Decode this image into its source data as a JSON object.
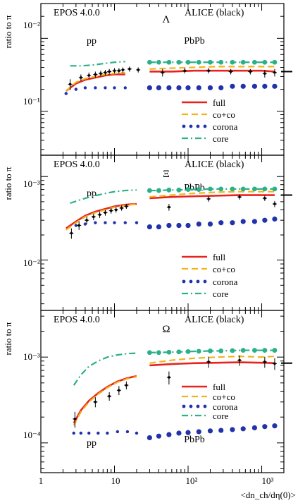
{
  "figure": {
    "xlabel": "<dn_ch/dη(0)>",
    "x_tick_labels": [
      "1",
      "10",
      "10²",
      "10³"
    ],
    "y_label": "ratio to π"
  },
  "colors": {
    "full": "#e8231f",
    "co+co": "#f2b41a",
    "corona": "#2233aa",
    "core": "#2bb08a",
    "data": "#000000"
  },
  "chart_data": [
    {
      "type": "line",
      "panel": "Lambda",
      "model_label": "EPOS 4.0.0",
      "data_label": "ALICE (black)",
      "particle": "Λ",
      "system_labels": [
        "pp",
        "PbPb"
      ],
      "xlabel": "<dn_ch/dη(0)>",
      "ylabel": "ratio to π",
      "xscale": "log",
      "yscale": "log",
      "xlim": [
        1,
        2000
      ],
      "ylim": [
        0.0025,
        0.3
      ],
      "y_tick_labels": [
        "10⁻²",
        "10⁻¹"
      ],
      "legend": {
        "placement": "bottom-right",
        "entries": [
          "full",
          "co+co",
          "corona",
          "core"
        ]
      },
      "series": [
        {
          "name": "full",
          "style": "solid",
          "x": [
            2.2,
            3,
            4,
            5.5,
            7.5,
            10,
            14,
            30,
            60,
            120,
            250,
            500,
            1000,
            1500
          ],
          "y": [
            0.019,
            0.024,
            0.027,
            0.029,
            0.031,
            0.032,
            0.032,
            0.035,
            0.035,
            0.036,
            0.036,
            0.036,
            0.036,
            0.035
          ]
        },
        {
          "name": "co+co",
          "style": "dashed",
          "x": [
            2.2,
            3,
            4,
            5.5,
            7.5,
            10,
            14,
            30,
            60,
            120,
            250,
            500,
            1000,
            1500
          ],
          "y": [
            0.019,
            0.025,
            0.028,
            0.03,
            0.032,
            0.033,
            0.034,
            0.038,
            0.039,
            0.04,
            0.041,
            0.041,
            0.041,
            0.041
          ]
        },
        {
          "name": "corona",
          "style": "dotted",
          "x": [
            2.2,
            3,
            4,
            5.5,
            7.5,
            10,
            14,
            30,
            40,
            55,
            75,
            100,
            140,
            200,
            280,
            400,
            560,
            800,
            1100,
            1500
          ],
          "y": [
            0.0175,
            0.02,
            0.021,
            0.021,
            0.021,
            0.021,
            0.021,
            0.021,
            0.021,
            0.021,
            0.021,
            0.021,
            0.021,
            0.021,
            0.021,
            0.022,
            0.022,
            0.022,
            0.022,
            0.022
          ]
        },
        {
          "name": "core",
          "style": "dashdot",
          "x": [
            2.5,
            3.5,
            5,
            7,
            10,
            14,
            30,
            40,
            55,
            75,
            100,
            140,
            200,
            280,
            400,
            560,
            800,
            1100,
            1500
          ],
          "y": [
            0.042,
            0.042,
            0.043,
            0.045,
            0.047,
            0.048,
            0.047,
            0.047,
            0.047,
            0.047,
            0.047,
            0.047,
            0.047,
            0.047,
            0.047,
            0.047,
            0.047,
            0.047,
            0.047
          ]
        },
        {
          "name": "ALICE",
          "style": "points",
          "x": [
            2.5,
            3.5,
            4.5,
            5.5,
            6.5,
            7.5,
            8.5,
            10,
            11.5,
            13,
            16,
            21,
            45,
            90,
            190,
            380,
            700,
            1100,
            1500
          ],
          "y": [
            0.0235,
            0.029,
            0.031,
            0.032,
            0.033,
            0.034,
            0.035,
            0.036,
            0.036,
            0.037,
            0.038,
            0.037,
            0.034,
            0.036,
            0.036,
            0.035,
            0.035,
            0.033,
            0.034
          ],
          "err": [
            0.004,
            0.003,
            0.003,
            0.003,
            0.003,
            0.003,
            0.003,
            0.003,
            0.003,
            0.003,
            0.003,
            0.003,
            0.004,
            0.003,
            0.003,
            0.003,
            0.003,
            0.004,
            0.004
          ]
        }
      ]
    },
    {
      "type": "line",
      "panel": "Xi",
      "model_label": "EPOS 4.0.0",
      "data_label": "ALICE (black)",
      "particle": "Ξ",
      "system_labels": [
        "pp",
        "PbPb"
      ],
      "xlabel": "<dn_ch/dη(0)>",
      "ylabel": "ratio to π",
      "xscale": "log",
      "yscale": "log",
      "xlim": [
        1,
        2000
      ],
      "ylim": [
        0.00025,
        0.018
      ],
      "y_tick_labels": [
        "10⁻³",
        "10⁻²"
      ],
      "legend": {
        "placement": "bottom-right",
        "entries": [
          "full",
          "co+co",
          "corona",
          "core"
        ]
      },
      "series": [
        {
          "name": "full",
          "style": "solid",
          "x": [
            2.2,
            3,
            4,
            5.5,
            7.5,
            10,
            14,
            20,
            30,
            60,
            120,
            250,
            500,
            1000,
            1500
          ],
          "y": [
            0.0024,
            0.0029,
            0.0034,
            0.0038,
            0.0041,
            0.0044,
            0.0046,
            0.0047,
            0.0055,
            0.0057,
            0.0058,
            0.0059,
            0.006,
            0.006,
            0.006
          ]
        },
        {
          "name": "co+co",
          "style": "dashed",
          "x": [
            2.2,
            3,
            4,
            5.5,
            7.5,
            10,
            14,
            20,
            30,
            60,
            120,
            250,
            500,
            1000,
            1500
          ],
          "y": [
            0.0023,
            0.0028,
            0.0033,
            0.0037,
            0.004,
            0.0043,
            0.0045,
            0.0047,
            0.0057,
            0.006,
            0.0063,
            0.0065,
            0.0066,
            0.0066,
            0.0066
          ]
        },
        {
          "name": "corona",
          "style": "dotted",
          "x": [
            3,
            4,
            5.5,
            7.5,
            10,
            14,
            20,
            30,
            40,
            55,
            75,
            100,
            140,
            200,
            280,
            400,
            560,
            800,
            1100,
            1500
          ],
          "y": [
            0.0026,
            0.0027,
            0.0028,
            0.0028,
            0.0028,
            0.0028,
            0.0028,
            0.0025,
            0.0025,
            0.0026,
            0.0026,
            0.0026,
            0.0027,
            0.0027,
            0.0028,
            0.0028,
            0.0029,
            0.0029,
            0.003,
            0.0031
          ]
        },
        {
          "name": "core",
          "style": "dashdot",
          "x": [
            2.5,
            3.5,
            5,
            7,
            10,
            14,
            20,
            30,
            40,
            55,
            75,
            100,
            140,
            200,
            280,
            400,
            560,
            800,
            1100,
            1500
          ],
          "y": [
            0.0048,
            0.0053,
            0.0058,
            0.0062,
            0.0066,
            0.0068,
            0.0069,
            0.0068,
            0.0068,
            0.0069,
            0.0069,
            0.007,
            0.007,
            0.0071,
            0.0071,
            0.0071,
            0.0071,
            0.0071,
            0.0071,
            0.0071
          ]
        },
        {
          "name": "ALICE",
          "style": "points",
          "x": [
            2.6,
            3.3,
            4.2,
            5.2,
            6.3,
            7.5,
            9,
            10.5,
            12.5,
            14.5,
            55,
            190,
            500,
            1100,
            1500
          ],
          "y": [
            0.0021,
            0.0026,
            0.003,
            0.0033,
            0.0035,
            0.0037,
            0.0039,
            0.004,
            0.0042,
            0.0044,
            0.0043,
            0.0054,
            0.0057,
            0.0055,
            0.0047
          ],
          "err": [
            0.0003,
            0.0003,
            0.0003,
            0.0003,
            0.0003,
            0.0003,
            0.0003,
            0.0003,
            0.0003,
            0.0003,
            0.0004,
            0.0004,
            0.0004,
            0.0004,
            0.0004
          ]
        }
      ]
    },
    {
      "type": "line",
      "panel": "Omega",
      "model_label": "EPOS 4.0.0",
      "data_label": "ALICE (black)",
      "particle": "Ω",
      "system_labels": [
        "pp",
        "PbPb"
      ],
      "xlabel": "<dn_ch/dη(0)>",
      "ylabel": "ratio to π",
      "xscale": "log",
      "yscale": "log",
      "xlim": [
        1,
        2000
      ],
      "ylim": [
        4.5e-05,
        0.0035
      ],
      "y_tick_labels": [
        "10⁻⁴",
        "10⁻³"
      ],
      "legend": {
        "placement": "middle-right",
        "entries": [
          "full",
          "co+co",
          "corona",
          "core"
        ]
      },
      "series": [
        {
          "name": "full",
          "style": "solid",
          "x": [
            2.8,
            3.5,
            4.5,
            6,
            8,
            11,
            15,
            20,
            30,
            60,
            120,
            250,
            500,
            1000,
            1500
          ],
          "y": [
            0.00017,
            0.00024,
            0.00031,
            0.00038,
            0.00045,
            0.00052,
            0.00057,
            0.0006,
            0.0008,
            0.00083,
            0.00085,
            0.00086,
            0.00087,
            0.00086,
            0.00085
          ]
        },
        {
          "name": "co+co",
          "style": "dashed",
          "x": [
            2.8,
            3.5,
            4.5,
            6,
            8,
            11,
            15,
            20,
            30,
            60,
            120,
            250,
            500,
            1000,
            1500
          ],
          "y": [
            0.00016,
            0.00023,
            0.0003,
            0.00037,
            0.00044,
            0.00051,
            0.00056,
            0.00059,
            0.00085,
            0.00092,
            0.00097,
            0.001,
            0.00102,
            0.001,
            0.00102
          ]
        },
        {
          "name": "corona",
          "style": "dotted",
          "x": [
            2.8,
            3.5,
            4.5,
            6,
            8,
            11,
            15,
            20,
            30,
            40,
            55,
            75,
            100,
            140,
            200,
            280,
            400,
            560,
            800,
            1100,
            1500
          ],
          "y": [
            0.00013,
            0.00013,
            0.00013,
            0.00013,
            0.00013,
            0.000135,
            0.000135,
            0.00013,
            0.000115,
            0.00012,
            0.000125,
            0.00013,
            0.000132,
            0.000135,
            0.000138,
            0.00014,
            0.000143,
            0.000146,
            0.00015,
            0.000155,
            0.000158
          ]
        },
        {
          "name": "core",
          "style": "dashdot",
          "x": [
            2.8,
            3.5,
            4.5,
            6,
            8,
            11,
            15,
            20,
            30,
            40,
            55,
            75,
            100,
            140,
            200,
            280,
            400,
            560,
            800,
            1100,
            1500
          ],
          "y": [
            0.00047,
            0.00062,
            0.00078,
            0.0009,
            0.001,
            0.00106,
            0.0011,
            0.00111,
            0.00113,
            0.00113,
            0.00114,
            0.00115,
            0.00116,
            0.00117,
            0.00118,
            0.00118,
            0.00119,
            0.0012,
            0.0012,
            0.0012,
            0.0012
          ]
        },
        {
          "name": "ALICE",
          "style": "points",
          "x": [
            2.9,
            5.5,
            8.5,
            11.5,
            14.5,
            55,
            190,
            500,
            1100,
            1500
          ],
          "y": [
            0.00019,
            0.0003,
            0.00035,
            0.00041,
            0.00047,
            0.00058,
            0.00088,
            0.00092,
            0.00088,
            0.00084
          ],
          "err": [
            4e-05,
            4e-05,
            4e-05,
            5e-05,
            5e-05,
            0.0001,
            0.00013,
            0.00013,
            0.00013,
            0.00013
          ]
        }
      ]
    }
  ]
}
